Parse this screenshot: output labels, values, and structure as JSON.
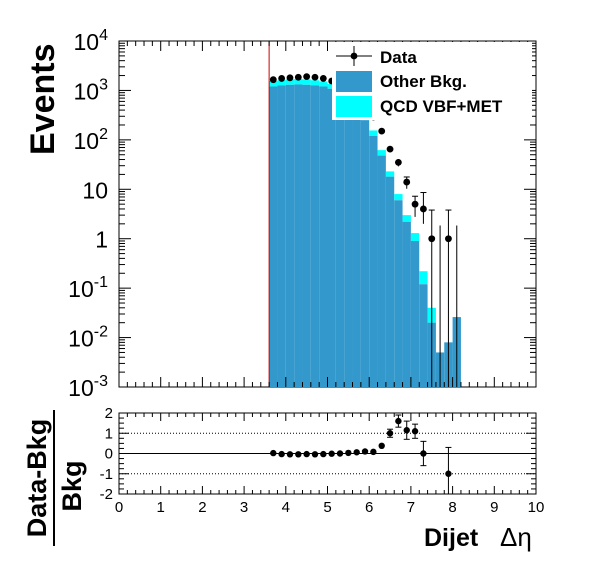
{
  "chart_data": [
    {
      "type": "histogram-stack",
      "ylabel": "Events",
      "yscale": "log",
      "ylim": [
        0.001,
        10000
      ],
      "xlim": [
        0,
        10
      ],
      "ytick_labels": [
        {
          "value": 0.001,
          "base": "10",
          "exp": "-3"
        },
        {
          "value": 0.01,
          "base": "10",
          "exp": "-2"
        },
        {
          "value": 0.1,
          "base": "10",
          "exp": "-1"
        },
        {
          "value": 1,
          "base": "1",
          "exp": ""
        },
        {
          "value": 10,
          "base": "10",
          "exp": ""
        },
        {
          "value": 100,
          "base": "10",
          "exp": "2"
        },
        {
          "value": 1000,
          "base": "10",
          "exp": "3"
        },
        {
          "value": 10000,
          "base": "10",
          "exp": "4"
        }
      ],
      "cut_line_x": 3.6,
      "bin_width": 0.2,
      "bins_low": [
        3.6,
        3.8,
        4.0,
        4.2,
        4.4,
        4.6,
        4.8,
        5.0,
        5.2,
        5.4,
        5.6,
        5.8,
        6.0,
        6.2,
        6.4,
        6.6,
        6.8,
        7.0,
        7.2,
        7.4,
        7.6,
        7.8,
        8.0
      ],
      "series": [
        {
          "name": "Other Bkg.",
          "color": "#3399cc",
          "values": [
            1200,
            1260,
            1300,
            1320,
            1300,
            1260,
            1200,
            1080,
            900,
            700,
            460,
            250,
            120,
            48,
            18,
            6,
            2.2,
            0.9,
            0.12,
            0.02,
            0.005,
            0.008,
            0.026
          ]
        },
        {
          "name": "QCD VBF+MET",
          "color": "#00ffff",
          "values": [
            350,
            360,
            380,
            380,
            370,
            350,
            320,
            280,
            230,
            180,
            120,
            70,
            35,
            14,
            5,
            2,
            0.8,
            0.4,
            0.1,
            0.02,
            0.0,
            0.0,
            0.0
          ]
        }
      ],
      "data_points": {
        "name": "Data",
        "x": [
          3.7,
          3.9,
          4.1,
          4.3,
          4.5,
          4.7,
          4.9,
          5.1,
          5.3,
          5.5,
          5.7,
          5.9,
          6.1,
          6.3,
          6.5,
          6.7,
          6.9,
          7.1,
          7.3,
          7.5,
          7.7,
          7.9,
          8.1
        ],
        "y": [
          1650,
          1750,
          1800,
          1850,
          1900,
          1850,
          1750,
          1550,
          1350,
          1100,
          780,
          480,
          290,
          150,
          65,
          35,
          14,
          5,
          4,
          1,
          0.001,
          1,
          0.001
        ]
      },
      "legend": {
        "placement": "top-right",
        "entries": [
          "Data",
          "Other Bkg.",
          "QCD VBF+MET"
        ]
      }
    },
    {
      "type": "scatter",
      "ylabel_numerator": "Data-Bkg",
      "ylabel_denominator": "Bkg",
      "xlabel_main": "Dijet",
      "xlabel_symbol": "Δη",
      "xlim": [
        0,
        10
      ],
      "ylim": [
        -2,
        2
      ],
      "x_ticks": [
        "0",
        "1",
        "2",
        "3",
        "4",
        "5",
        "6",
        "7",
        "8",
        "9",
        "10"
      ],
      "y_ticks": [
        "-2",
        "-1",
        "0",
        "1",
        "2"
      ],
      "gridlines_y": [
        -1,
        1
      ],
      "x": [
        3.7,
        3.9,
        4.1,
        4.3,
        4.5,
        4.7,
        4.9,
        5.1,
        5.3,
        5.5,
        5.7,
        5.9,
        6.1,
        6.3,
        6.5,
        6.7,
        6.9,
        7.1,
        7.3,
        7.9
      ],
      "y": [
        0.02,
        -0.03,
        -0.04,
        -0.04,
        -0.03,
        -0.04,
        -0.03,
        -0.01,
        0.0,
        0.03,
        0.06,
        0.1,
        0.08,
        0.38,
        1.0,
        1.6,
        1.15,
        1.1,
        0.0,
        -1.0
      ],
      "yerr": [
        0.03,
        0.03,
        0.03,
        0.03,
        0.03,
        0.03,
        0.03,
        0.03,
        0.03,
        0.04,
        0.05,
        0.06,
        0.07,
        0.1,
        0.2,
        0.3,
        0.45,
        0.35,
        0.6,
        1.3
      ]
    }
  ]
}
